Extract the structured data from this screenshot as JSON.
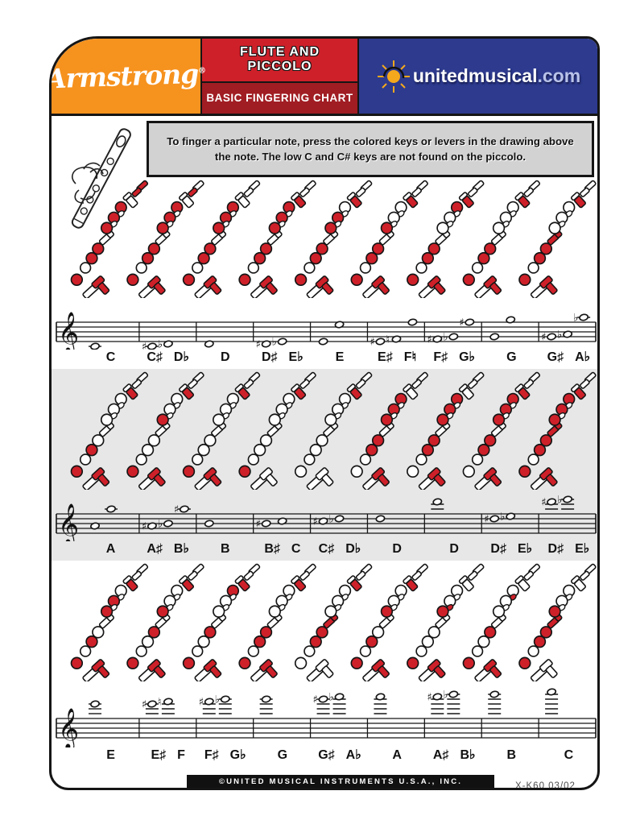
{
  "header": {
    "brand": "Armstrong",
    "brand_registered": "®",
    "title_line1": "FLUTE AND",
    "title_line2": "PICCOLO",
    "subtitle": "BASIC FINGERING CHART",
    "site_name": "unitedmusical",
    "site_tld": ".com"
  },
  "instructions": {
    "text": "To finger a particular note, press the colored keys or levers in the drawing above the note. The low C and C# keys are not found on the piccolo."
  },
  "colors": {
    "key_red": "#ce2029",
    "brand_orange": "#f6921e",
    "banner_red": "#ce2029",
    "banner_dark_red": "#a01d23",
    "site_blue": "#2d3a8e",
    "row_alt_gray": "#e7e7e7",
    "instruction_gray": "#d3d2d2",
    "outline_black": "#151515"
  },
  "icons": {
    "flute_hand": "flute-in-hand-illustration",
    "sun": "sun-logo-icon",
    "clef": "treble-clef"
  },
  "footer": {
    "copyright": "©UNITED MUSICAL INSTRUMENTS U.S.A., INC.",
    "code": "X-K60  03/02"
  },
  "rows": [
    {
      "bg": "white",
      "measures": [
        {
          "labels": [
            "C"
          ],
          "notes": [
            {
              "p": "C4",
              "a": null
            }
          ],
          "keys": {
            "c": 1,
            "cs": 1,
            "eb": 0,
            "k6": 1,
            "k5": 1,
            "k4": 1,
            "dst": 0,
            "dt": 0,
            "gs": 0,
            "k3": 1,
            "k2": 1,
            "k1": 1,
            "t": 1
          }
        },
        {
          "labels": [
            "C♯",
            "D♭"
          ],
          "notes": [
            {
              "p": "C4",
              "a": "#"
            },
            {
              "p": "D4",
              "a": "b"
            }
          ],
          "keys": {
            "c": 0,
            "cs": 1,
            "eb": 0,
            "k6": 1,
            "k5": 1,
            "k4": 1,
            "dst": 0,
            "dt": 0,
            "gs": 0,
            "k3": 1,
            "k2": 1,
            "k1": 1,
            "t": 1
          }
        },
        {
          "labels": [
            "D"
          ],
          "notes": [
            {
              "p": "D4",
              "a": null
            }
          ],
          "keys": {
            "c": 0,
            "cs": 0,
            "eb": 0,
            "k6": 1,
            "k5": 1,
            "k4": 1,
            "dst": 0,
            "dt": 0,
            "gs": 0,
            "k3": 1,
            "k2": 1,
            "k1": 1,
            "t": 1
          }
        },
        {
          "labels": [
            "D♯",
            "E♭"
          ],
          "notes": [
            {
              "p": "D4",
              "a": "#"
            },
            {
              "p": "E4",
              "a": "b"
            }
          ],
          "keys": {
            "c": 0,
            "cs": 0,
            "eb": 1,
            "k6": 1,
            "k5": 1,
            "k4": 1,
            "dst": 0,
            "dt": 0,
            "gs": 0,
            "k3": 1,
            "k2": 1,
            "k1": 1,
            "t": 1
          }
        },
        {
          "labels": [
            "E"
          ],
          "notes": [
            {
              "p": "E4",
              "a": null
            },
            {
              "p": "E5",
              "a": null
            }
          ],
          "keys": {
            "c": 0,
            "cs": 0,
            "eb": 1,
            "k6": 0,
            "k5": 1,
            "k4": 1,
            "dst": 0,
            "dt": 0,
            "gs": 0,
            "k3": 1,
            "k2": 1,
            "k1": 1,
            "t": 1
          }
        },
        {
          "labels": [
            "E♯",
            "F♮"
          ],
          "notes": [
            {
              "p": "E4",
              "a": "#"
            },
            {
              "p": "F4",
              "a": "n"
            },
            {
              "p": "F5",
              "a": null
            }
          ],
          "keys": {
            "c": 0,
            "cs": 0,
            "eb": 1,
            "k6": 0,
            "k5": 0,
            "k4": 1,
            "dst": 0,
            "dt": 0,
            "gs": 0,
            "k3": 1,
            "k2": 1,
            "k1": 1,
            "t": 1
          }
        },
        {
          "labels": [
            "F♯",
            "G♭"
          ],
          "notes": [
            {
              "p": "F4",
              "a": "#"
            },
            {
              "p": "G4",
              "a": "b"
            },
            {
              "p": "F5",
              "a": "#"
            }
          ],
          "keys": {
            "c": 0,
            "cs": 0,
            "eb": 1,
            "k6": 1,
            "k5": 0,
            "k4": 0,
            "dst": 0,
            "dt": 0,
            "gs": 0,
            "k3": 1,
            "k2": 1,
            "k1": 1,
            "t": 1
          }
        },
        {
          "labels": [
            "G"
          ],
          "notes": [
            {
              "p": "G4",
              "a": null
            },
            {
              "p": "G5",
              "a": null
            }
          ],
          "keys": {
            "c": 0,
            "cs": 0,
            "eb": 1,
            "k6": 0,
            "k5": 0,
            "k4": 0,
            "dst": 0,
            "dt": 0,
            "gs": 0,
            "k3": 1,
            "k2": 1,
            "k1": 1,
            "t": 1
          }
        },
        {
          "labels": [
            "G♯",
            "A♭"
          ],
          "notes": [
            {
              "p": "G4",
              "a": "#"
            },
            {
              "p": "A4",
              "a": "b"
            },
            {
              "p": "A5",
              "a": "b"
            }
          ],
          "keys": {
            "c": 0,
            "cs": 0,
            "eb": 1,
            "k6": 0,
            "k5": 0,
            "k4": 0,
            "dst": 0,
            "dt": 0,
            "gs": 1,
            "k3": 1,
            "k2": 1,
            "k1": 1,
            "t": 1
          }
        }
      ]
    },
    {
      "bg": "gray",
      "measures": [
        {
          "labels": [
            "A"
          ],
          "notes": [
            {
              "p": "A4",
              "a": null
            },
            {
              "p": "A5",
              "a": null
            }
          ],
          "keys": {
            "c": 0,
            "cs": 0,
            "eb": 1,
            "k6": 0,
            "k5": 0,
            "k4": 0,
            "dst": 0,
            "dt": 0,
            "gs": 0,
            "k3": 0,
            "k2": 1,
            "k1": 1,
            "t": 1
          }
        },
        {
          "labels": [
            "A♯",
            "B♭"
          ],
          "notes": [
            {
              "p": "A4",
              "a": "#"
            },
            {
              "p": "B4",
              "a": "b"
            },
            {
              "p": "A5",
              "a": "#"
            }
          ],
          "keys": {
            "c": 0,
            "cs": 0,
            "eb": 1,
            "k6": 0,
            "k5": 0,
            "k4": 1,
            "dst": 0,
            "dt": 0,
            "gs": 0,
            "k3": 0,
            "k2": 0,
            "k1": 1,
            "t": 1
          }
        },
        {
          "labels": [
            "B"
          ],
          "notes": [
            {
              "p": "B4",
              "a": null
            }
          ],
          "keys": {
            "c": 0,
            "cs": 0,
            "eb": 1,
            "k6": 0,
            "k5": 0,
            "k4": 0,
            "dst": 0,
            "dt": 0,
            "gs": 0,
            "k3": 0,
            "k2": 0,
            "k1": 1,
            "t": 1
          }
        },
        {
          "labels": [
            "B♯",
            "C"
          ],
          "notes": [
            {
              "p": "B4",
              "a": "#"
            },
            {
              "p": "C5",
              "a": null
            }
          ],
          "keys": {
            "c": 0,
            "cs": 0,
            "eb": 1,
            "k6": 0,
            "k5": 0,
            "k4": 0,
            "dst": 0,
            "dt": 0,
            "gs": 0,
            "k3": 0,
            "k2": 0,
            "k1": 1,
            "t": 0
          }
        },
        {
          "labels": [
            "C♯",
            "D♭"
          ],
          "notes": [
            {
              "p": "C5",
              "a": "#"
            },
            {
              "p": "D5",
              "a": "b"
            }
          ],
          "keys": {
            "c": 0,
            "cs": 0,
            "eb": 1,
            "k6": 0,
            "k5": 0,
            "k4": 0,
            "dst": 0,
            "dt": 0,
            "gs": 0,
            "k3": 0,
            "k2": 0,
            "k1": 0,
            "t": 0
          }
        },
        {
          "labels": [
            "D"
          ],
          "notes": [
            {
              "p": "D5",
              "a": null
            }
          ],
          "keys": {
            "c": 0,
            "cs": 0,
            "eb": 0,
            "k6": 1,
            "k5": 1,
            "k4": 1,
            "dst": 0,
            "dt": 0,
            "gs": 0,
            "k3": 1,
            "k2": 1,
            "k1": 0,
            "t": 1
          }
        },
        {
          "labels": [
            "D"
          ],
          "notes": [
            {
              "p": "D6",
              "a": null
            }
          ],
          "keys": {
            "c": 0,
            "cs": 0,
            "eb": 0,
            "k6": 1,
            "k5": 1,
            "k4": 1,
            "dst": 0,
            "dt": 0,
            "gs": 0,
            "k3": 1,
            "k2": 1,
            "k1": 0,
            "t": 1
          }
        },
        {
          "labels": [
            "D♯",
            "E♭"
          ],
          "notes": [
            {
              "p": "D5",
              "a": "#"
            },
            {
              "p": "E5",
              "a": "b"
            }
          ],
          "keys": {
            "c": 0,
            "cs": 0,
            "eb": 1,
            "k6": 1,
            "k5": 1,
            "k4": 1,
            "dst": 0,
            "dt": 0,
            "gs": 0,
            "k3": 1,
            "k2": 1,
            "k1": 0,
            "t": 1
          }
        },
        {
          "labels": [
            "D♯",
            "E♭"
          ],
          "notes": [
            {
              "p": "D6",
              "a": "#"
            },
            {
              "p": "E6",
              "a": "b"
            }
          ],
          "keys": {
            "c": 0,
            "cs": 0,
            "eb": 1,
            "k6": 1,
            "k5": 1,
            "k4": 1,
            "dst": 0,
            "dt": 0,
            "gs": 1,
            "k3": 1,
            "k2": 1,
            "k1": 1,
            "t": 1
          }
        }
      ]
    },
    {
      "bg": "white",
      "measures": [
        {
          "labels": [
            "E"
          ],
          "notes": [
            {
              "p": "E6",
              "a": null
            }
          ],
          "keys": {
            "c": 0,
            "cs": 0,
            "eb": 1,
            "k6": 0,
            "k5": 1,
            "k4": 1,
            "dst": 0,
            "dt": 0,
            "gs": 0,
            "k3": 0,
            "k2": 1,
            "k1": 1,
            "t": 1
          }
        },
        {
          "labels": [
            "E♯",
            "F"
          ],
          "notes": [
            {
              "p": "E6",
              "a": "#"
            },
            {
              "p": "F6",
              "a": "n"
            }
          ],
          "keys": {
            "c": 0,
            "cs": 0,
            "eb": 1,
            "k6": 0,
            "k5": 0,
            "k4": 1,
            "dst": 0,
            "dt": 0,
            "gs": 0,
            "k3": 1,
            "k2": 0,
            "k1": 1,
            "t": 1
          }
        },
        {
          "labels": [
            "F♯",
            "G♭"
          ],
          "notes": [
            {
              "p": "F6",
              "a": "#"
            },
            {
              "p": "G6",
              "a": "b"
            }
          ],
          "keys": {
            "c": 0,
            "cs": 0,
            "eb": 1,
            "k6": 1,
            "k5": 0,
            "k4": 0,
            "dst": 0,
            "dt": 0,
            "gs": 0,
            "k3": 1,
            "k2": 0,
            "k1": 1,
            "t": 1
          }
        },
        {
          "labels": [
            "G"
          ],
          "notes": [
            {
              "p": "G6",
              "a": null
            }
          ],
          "keys": {
            "c": 0,
            "cs": 0,
            "eb": 1,
            "k6": 0,
            "k5": 0,
            "k4": 0,
            "dst": 0,
            "dt": 0,
            "gs": 0,
            "k3": 1,
            "k2": 1,
            "k1": 1,
            "t": 1
          }
        },
        {
          "labels": [
            "G♯",
            "A♭"
          ],
          "notes": [
            {
              "p": "G6",
              "a": "#"
            },
            {
              "p": "A6",
              "a": "b"
            }
          ],
          "keys": {
            "c": 0,
            "cs": 0,
            "eb": 1,
            "k6": 0,
            "k5": 0,
            "k4": 0,
            "dst": 0,
            "dt": 0,
            "gs": 1,
            "k3": 1,
            "k2": 1,
            "k1": 0,
            "t": 0
          }
        },
        {
          "labels": [
            "A"
          ],
          "notes": [
            {
              "p": "A6",
              "a": null
            }
          ],
          "keys": {
            "c": 0,
            "cs": 0,
            "eb": 1,
            "k6": 0,
            "k5": 0,
            "k4": 1,
            "dst": 0,
            "dt": 0,
            "gs": 0,
            "k3": 0,
            "k2": 1,
            "k1": 1,
            "t": 1
          }
        },
        {
          "labels": [
            "A♯",
            "B♭"
          ],
          "notes": [
            {
              "p": "A6",
              "a": "#"
            },
            {
              "p": "B6",
              "a": "b"
            }
          ],
          "keys": {
            "c": 0,
            "cs": 0,
            "eb": 0,
            "k6": 0,
            "k5": 0,
            "k4": 1,
            "dst": 0,
            "dt": 1,
            "gs": 0,
            "k3": 0,
            "k2": 0,
            "k1": 1,
            "t": 1
          }
        },
        {
          "labels": [
            "B"
          ],
          "notes": [
            {
              "p": "B6",
              "a": null
            }
          ],
          "keys": {
            "c": 0,
            "cs": 0,
            "eb": 0,
            "k6": 0,
            "k5": 0,
            "k4": 0,
            "dst": 1,
            "dt": 0,
            "gs": 0,
            "k3": 1,
            "k2": 0,
            "k1": 1,
            "t": 1
          }
        },
        {
          "labels": [
            "C"
          ],
          "notes": [
            {
              "p": "C7",
              "a": null
            }
          ],
          "keys": {
            "c": 0,
            "cs": 0,
            "eb": 0,
            "k6": 0,
            "k5": 0,
            "k4": 1,
            "dst": 0,
            "dt": 0,
            "gs": 1,
            "k3": 1,
            "k2": 1,
            "k1": 1,
            "t": 0
          }
        }
      ]
    }
  ]
}
